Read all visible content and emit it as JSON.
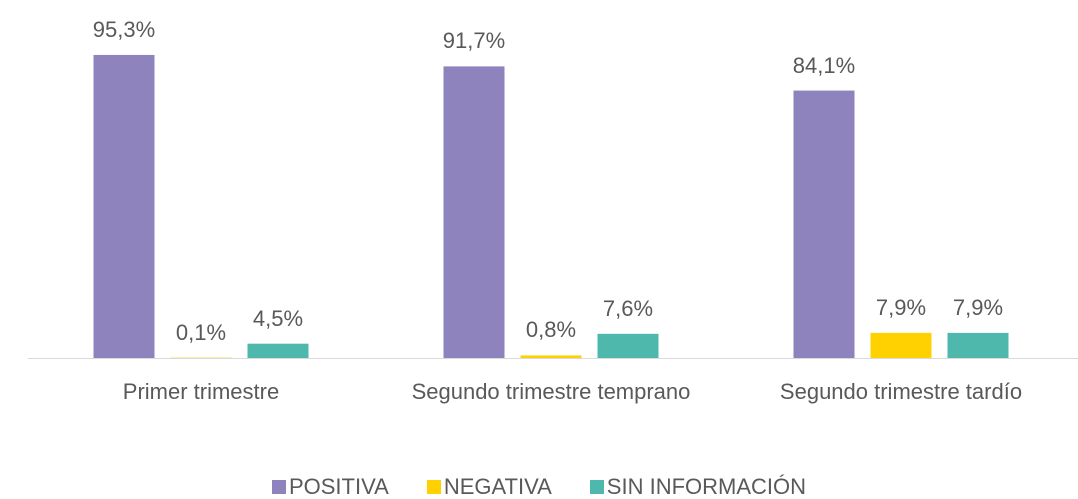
{
  "chart_data": {
    "type": "bar",
    "categories": [
      "Primer trimestre",
      "Segundo trimestre temprano",
      "Segundo trimestre tardío"
    ],
    "series": [
      {
        "name": "POSITIVA",
        "color": "#8f83be",
        "values": [
          95.3,
          91.7,
          84.1
        ],
        "value_labels": [
          "95,3%",
          "91,7%",
          "84,1%"
        ]
      },
      {
        "name": "NEGATIVA",
        "color": "#ffd100",
        "values": [
          0.1,
          0.8,
          7.9
        ],
        "value_labels": [
          "0,1%",
          "0,8%",
          "7,9%"
        ]
      },
      {
        "name": "SIN INFORMACIÓN",
        "color": "#4fb8ad",
        "values": [
          4.5,
          7.6,
          7.9
        ],
        "value_labels": [
          "4,5%",
          "7,6%",
          "7,9%"
        ]
      }
    ],
    "legend": "bottom"
  }
}
